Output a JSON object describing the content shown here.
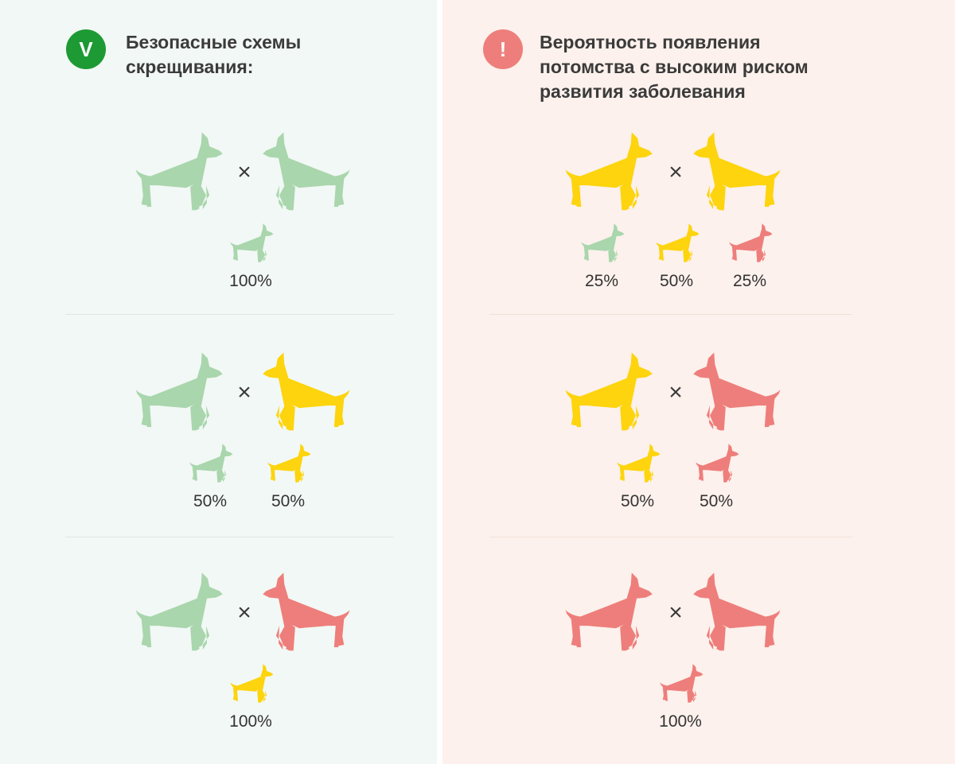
{
  "colors": {
    "green": "#a9d6ad",
    "yellow": "#fdd40d",
    "red": "#ee7e7b",
    "check_badge": "#1d9a33",
    "alert_badge": "#ee7e7b"
  },
  "left": {
    "badge": "V",
    "badge_icon": "check-icon",
    "title_lines": [
      "Безопасные схемы",
      "скрещивания:"
    ],
    "rows": [
      {
        "parents": [
          "green",
          "green"
        ],
        "cross": "×",
        "offspring": [
          {
            "color": "green",
            "percent": "100%"
          }
        ]
      },
      {
        "parents": [
          "green",
          "yellow"
        ],
        "cross": "×",
        "offspring": [
          {
            "color": "green",
            "percent": "50%"
          },
          {
            "color": "yellow",
            "percent": "50%"
          }
        ]
      },
      {
        "parents": [
          "green",
          "red"
        ],
        "cross": "×",
        "offspring": [
          {
            "color": "yellow",
            "percent": "100%"
          }
        ]
      }
    ]
  },
  "right": {
    "badge": "!",
    "badge_icon": "exclamation-icon",
    "title_lines": [
      "Вероятность появления",
      "потомства с высоким риском",
      "развития заболевания"
    ],
    "rows": [
      {
        "parents": [
          "yellow",
          "yellow"
        ],
        "cross": "×",
        "offspring": [
          {
            "color": "green",
            "percent": "25%"
          },
          {
            "color": "yellow",
            "percent": "50%"
          },
          {
            "color": "red",
            "percent": "25%"
          }
        ]
      },
      {
        "parents": [
          "yellow",
          "red"
        ],
        "cross": "×",
        "offspring": [
          {
            "color": "yellow",
            "percent": "50%"
          },
          {
            "color": "red",
            "percent": "50%"
          }
        ]
      },
      {
        "parents": [
          "red",
          "red"
        ],
        "cross": "×",
        "offspring": [
          {
            "color": "red",
            "percent": "100%"
          }
        ]
      }
    ]
  }
}
